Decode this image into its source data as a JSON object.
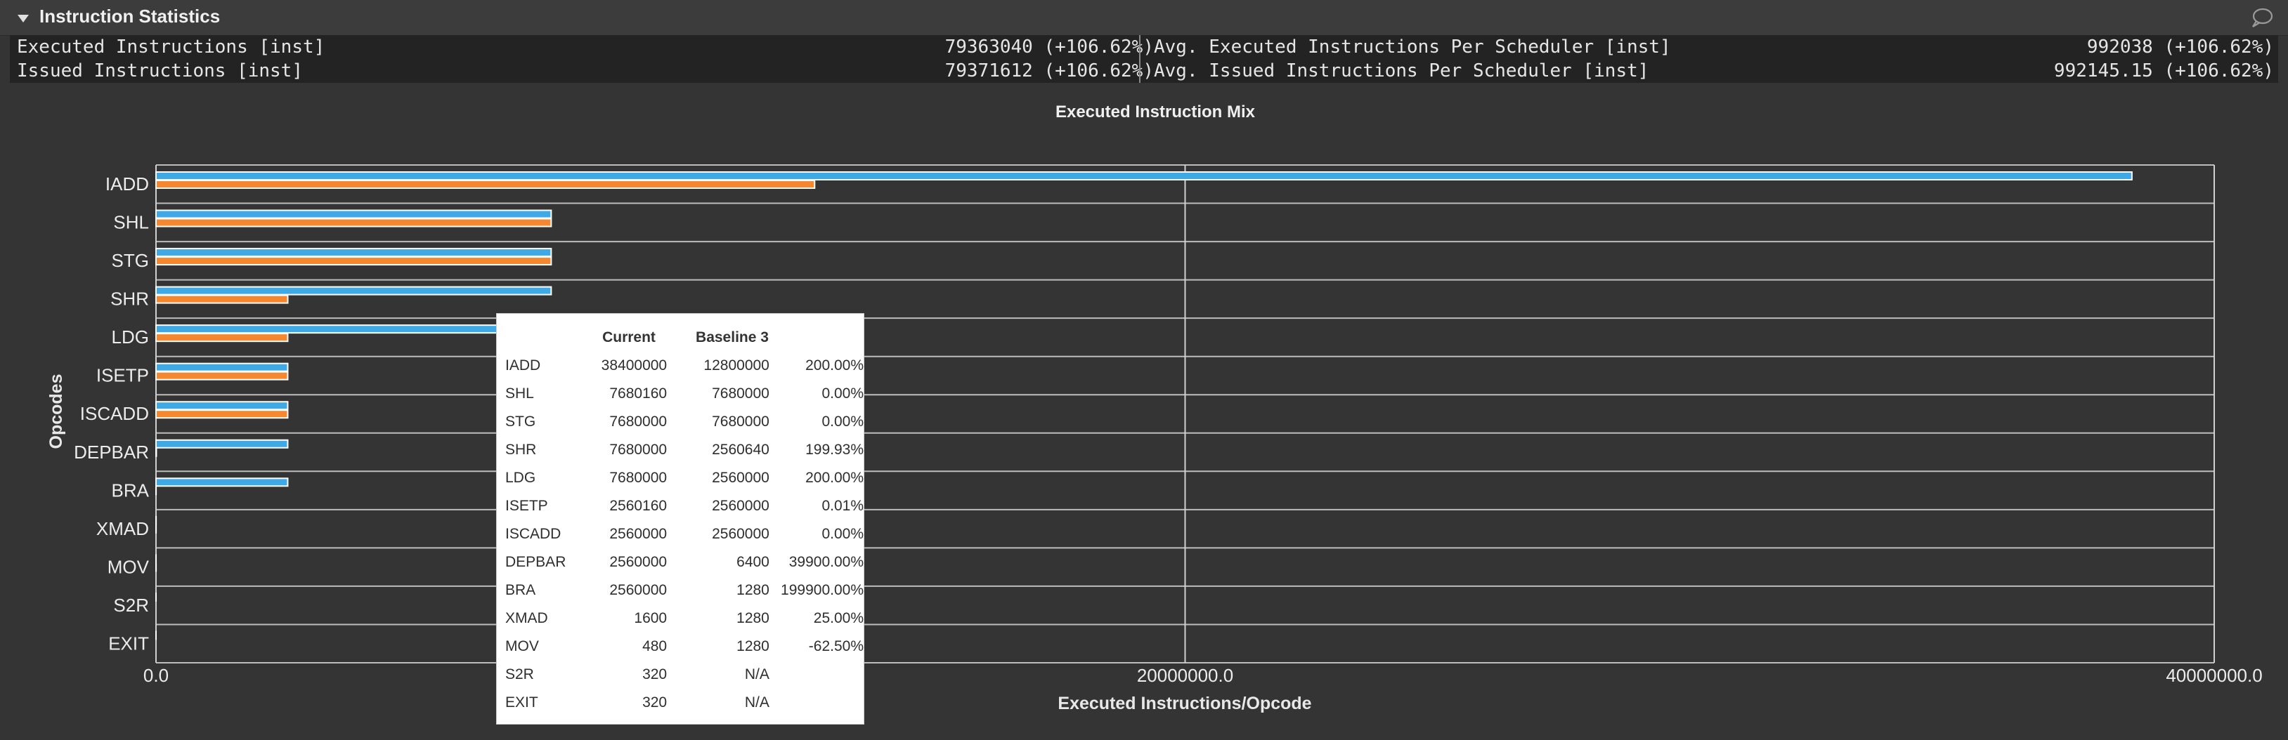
{
  "section": {
    "title": "Instruction Statistics",
    "collapse_icon": "triangle-down-icon",
    "comment_icon": "speech-bubble-icon"
  },
  "metrics": [
    {
      "left_label": "Executed Instructions [inst]",
      "left_value": "79363040 (+106.62%)",
      "right_label": "Avg. Executed Instructions Per Scheduler [inst]",
      "right_value": "992038 (+106.62%)"
    },
    {
      "left_label": "Issued Instructions [inst]",
      "left_value": "79371612 (+106.62%)",
      "right_label": "Avg. Issued Instructions Per Scheduler [inst]",
      "right_value": "992145.15 (+106.62%)"
    }
  ],
  "chart_data": {
    "type": "bar",
    "orientation": "horizontal",
    "title": "Executed Instruction Mix",
    "xlabel": "Executed Instructions/Opcode",
    "ylabel": "Opcodes",
    "xlim": [
      0,
      40000000
    ],
    "x_ticks": [
      "0.0",
      "20000000.0",
      "40000000.0"
    ],
    "grid": true,
    "categories": [
      "IADD",
      "SHL",
      "STG",
      "SHR",
      "LDG",
      "ISETP",
      "ISCADD",
      "DEPBAR",
      "BRA",
      "XMAD",
      "MOV",
      "S2R",
      "EXIT"
    ],
    "series": [
      {
        "name": "Current",
        "color": "#3fa9e6",
        "values": [
          38400000,
          7680160,
          7680000,
          7680000,
          7680000,
          2560160,
          2560000,
          2560000,
          2560000,
          1600,
          480,
          320,
          320
        ]
      },
      {
        "name": "Baseline 3",
        "color": "#f5872e",
        "values": [
          12800000,
          7680000,
          7680000,
          2560640,
          2560000,
          2560000,
          2560000,
          6400,
          1280,
          1280,
          1280,
          null,
          null
        ]
      }
    ]
  },
  "tooltip": {
    "headers": [
      "",
      "Current",
      "Baseline 3",
      ""
    ],
    "rows": [
      [
        "IADD",
        "38400000",
        "12800000",
        "200.00%"
      ],
      [
        "SHL",
        "7680160",
        "7680000",
        "0.00%"
      ],
      [
        "STG",
        "7680000",
        "7680000",
        "0.00%"
      ],
      [
        "SHR",
        "7680000",
        "2560640",
        "199.93%"
      ],
      [
        "LDG",
        "7680000",
        "2560000",
        "200.00%"
      ],
      [
        "ISETP",
        "2560160",
        "2560000",
        "0.01%"
      ],
      [
        "ISCADD",
        "2560000",
        "2560000",
        "0.00%"
      ],
      [
        "DEPBAR",
        "2560000",
        "6400",
        "39900.00%"
      ],
      [
        "BRA",
        "2560000",
        "1280",
        "199900.00%"
      ],
      [
        "XMAD",
        "1600",
        "1280",
        "25.00%"
      ],
      [
        "MOV",
        "480",
        "1280",
        "-62.50%"
      ],
      [
        "S2R",
        "320",
        "N/A",
        ""
      ],
      [
        "EXIT",
        "320",
        "N/A",
        ""
      ]
    ]
  }
}
